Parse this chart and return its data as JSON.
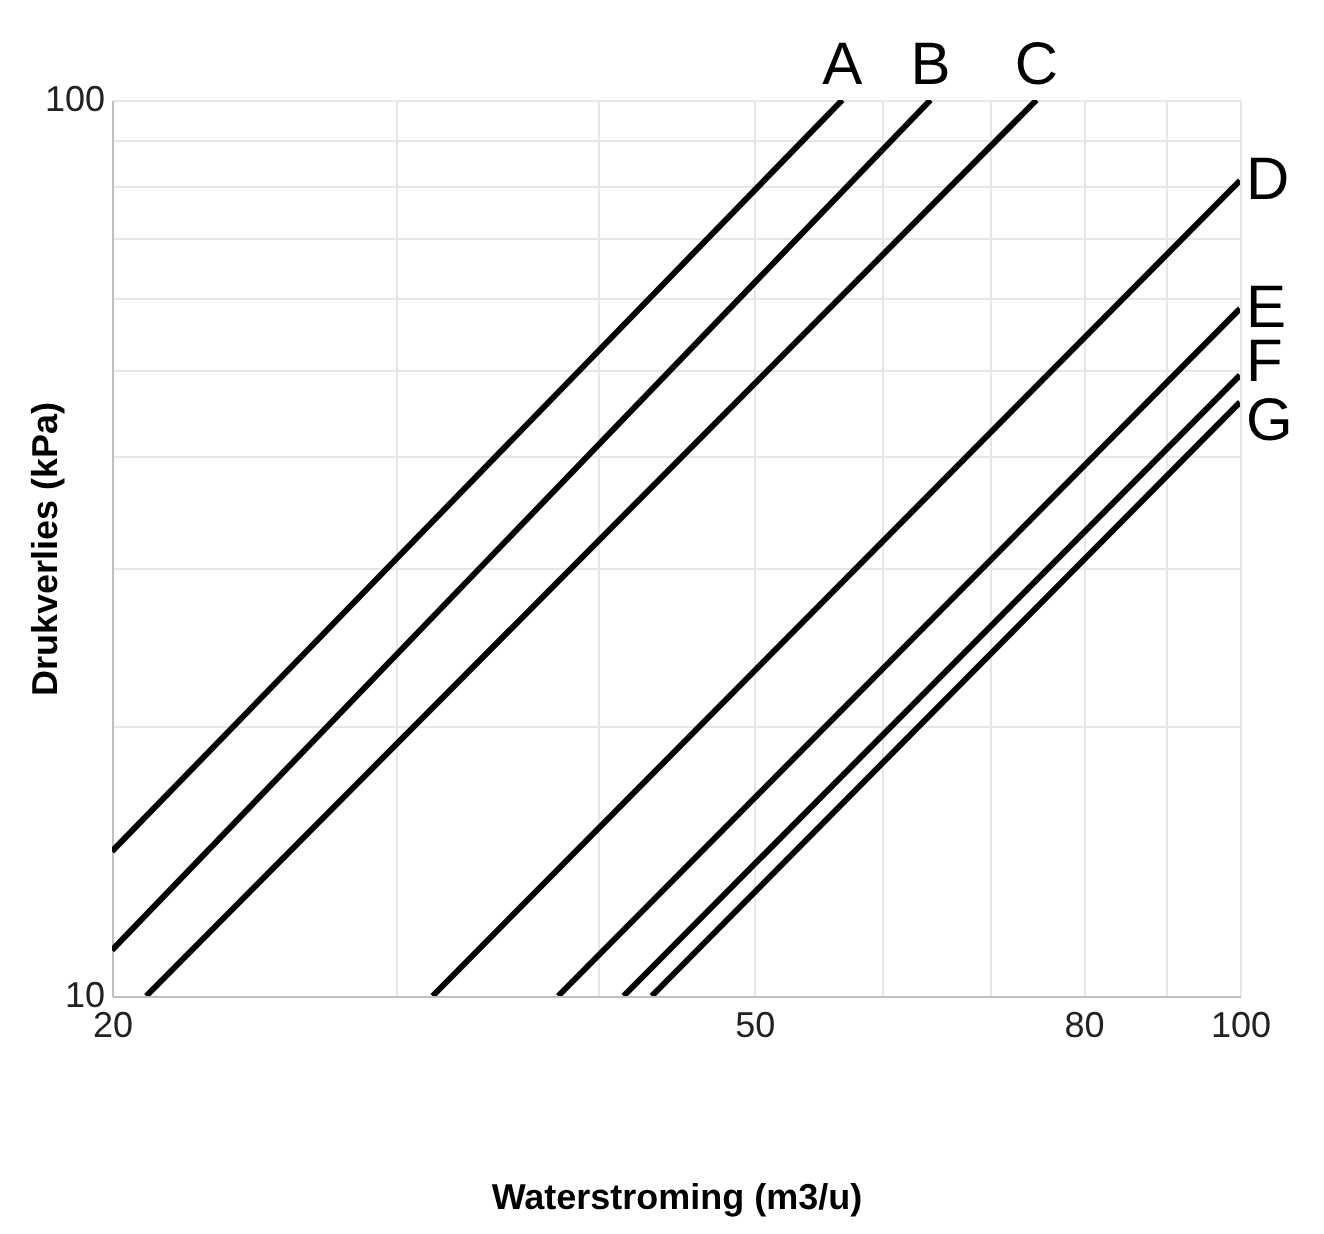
{
  "chart_data": {
    "type": "line",
    "xlabel": "Waterstroming (m3/u)",
    "ylabel": "Drukverlies (kPa)",
    "log": "xy",
    "grid": true,
    "xlim": [
      20,
      100
    ],
    "ylim": [
      10,
      100
    ],
    "xticks": [
      20,
      {
        "value": 30,
        "label": null
      },
      {
        "value": 40,
        "label": null
      },
      50,
      {
        "value": 60,
        "label": null
      },
      {
        "value": 70,
        "label": null
      },
      80,
      {
        "value": 90,
        "label": null
      },
      100
    ],
    "yticks": [
      10,
      {
        "value": 20,
        "label": null
      },
      {
        "value": 30,
        "label": null
      },
      {
        "value": 40,
        "label": null
      },
      {
        "value": 50,
        "label": null
      },
      {
        "value": 60,
        "label": null
      },
      {
        "value": 70,
        "label": null
      },
      {
        "value": 80,
        "label": null
      },
      {
        "value": 90,
        "label": null
      },
      100
    ],
    "series": [
      {
        "name": "A",
        "color": "#000000",
        "x": [
          20,
          56.7
        ],
        "values": [
          14.5,
          100
        ]
      },
      {
        "name": "B",
        "color": "#000000",
        "x": [
          20,
          64.3
        ],
        "values": [
          11.25,
          100
        ]
      },
      {
        "name": "C",
        "color": "#000000",
        "x": [
          21,
          74.8
        ],
        "values": [
          10,
          100
        ]
      },
      {
        "name": "D",
        "color": "#000000",
        "x": [
          31.6,
          100
        ],
        "values": [
          10,
          81.3
        ]
      },
      {
        "name": "E",
        "color": "#000000",
        "x": [
          37.8,
          100
        ],
        "values": [
          10,
          58.5
        ]
      },
      {
        "name": "F",
        "color": "#000000",
        "x": [
          41.5,
          100
        ],
        "values": [
          10,
          49.3
        ]
      },
      {
        "name": "G",
        "color": "#000000",
        "x": [
          43.2,
          100
        ],
        "values": [
          10,
          46
        ]
      }
    ]
  }
}
